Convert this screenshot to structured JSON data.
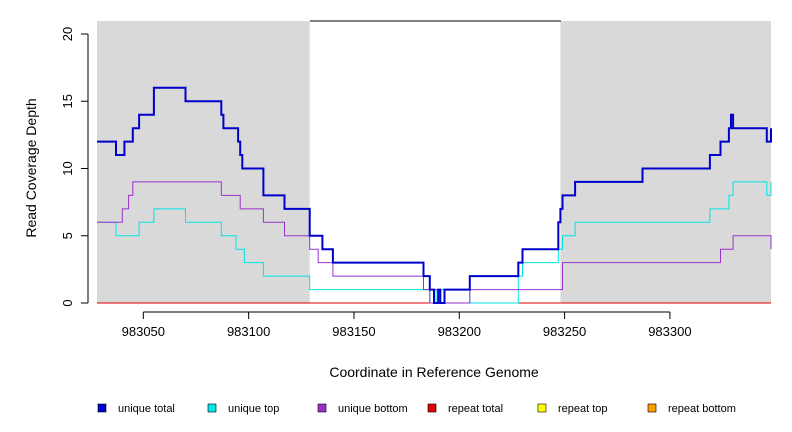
{
  "chart_data": {
    "type": "line",
    "title": "",
    "xlabel": "Coordinate in Reference Genome",
    "ylabel": "Read Coverage Depth",
    "xlim": [
      983028,
      983348
    ],
    "ylim": [
      0,
      20
    ],
    "x_ticks": [
      983050,
      983100,
      983150,
      983200,
      983250,
      983300
    ],
    "y_ticks": [
      0,
      5,
      10,
      15,
      20
    ],
    "grid": false,
    "shaded_regions": [
      {
        "x_start": 983028,
        "x_end": 983129,
        "color": "#d9d9d9"
      },
      {
        "x_start": 983248,
        "x_end": 983348,
        "color": "#d9d9d9"
      }
    ],
    "legend_position": "bottom",
    "series": [
      {
        "name": "unique total",
        "color": "#0000cc",
        "x": [
          983028,
          983037,
          983041,
          983045,
          983048,
          983055,
          983070,
          983087,
          983088,
          983095,
          983096,
          983097,
          983107,
          983117,
          983129,
          983135,
          983140,
          983183,
          983186,
          983188,
          983190,
          983191,
          983193,
          983205,
          983228,
          983230,
          983247,
          983248,
          983249,
          983255,
          983287,
          983319,
          983324,
          983328,
          983329,
          983330,
          983346,
          983348
        ],
        "values": [
          12,
          11,
          12,
          13,
          14,
          16,
          15,
          14,
          13,
          12,
          11,
          10,
          8,
          7,
          5,
          4,
          3,
          2,
          1,
          0,
          1,
          0,
          1,
          2,
          3,
          4,
          6,
          7,
          8,
          9,
          10,
          11,
          12,
          13,
          14,
          13,
          12,
          13
        ]
      },
      {
        "name": "unique top",
        "color": "#00e5e5",
        "x": [
          983028,
          983037,
          983048,
          983055,
          983070,
          983087,
          983094,
          983098,
          983107,
          983129,
          983186,
          983188,
          983189,
          983191,
          983205,
          983228,
          983230,
          983247,
          983249,
          983255,
          983319,
          983328,
          983330,
          983346,
          983348
        ],
        "values": [
          6,
          5,
          6,
          7,
          6,
          5,
          4,
          3,
          2,
          1,
          0,
          1,
          0,
          1,
          0,
          2,
          3,
          4,
          5,
          6,
          7,
          8,
          9,
          8,
          9
        ]
      },
      {
        "name": "unique bottom",
        "color": "#9932cc",
        "x": [
          983028,
          983040,
          983043,
          983045,
          983055,
          983087,
          983096,
          983107,
          983117,
          983129,
          983133,
          983140,
          983183,
          983186,
          983188,
          983191,
          983205,
          983247,
          983249,
          983287,
          983324,
          983330,
          983348
        ],
        "values": [
          6,
          7,
          8,
          9,
          9,
          8,
          7,
          6,
          5,
          4,
          3,
          2,
          1,
          0,
          1,
          0,
          1,
          1,
          3,
          3,
          4,
          5,
          4
        ]
      },
      {
        "name": "repeat total",
        "color": "#e00000",
        "x": [
          983028,
          983348
        ],
        "values": [
          0,
          0
        ]
      },
      {
        "name": "repeat top",
        "color": "#ffff00",
        "x": [
          983028,
          983348
        ],
        "values": [
          0,
          0
        ]
      },
      {
        "name": "repeat bottom",
        "color": "#ff9900",
        "x": [
          983028,
          983348
        ],
        "values": [
          0,
          0
        ]
      }
    ]
  }
}
